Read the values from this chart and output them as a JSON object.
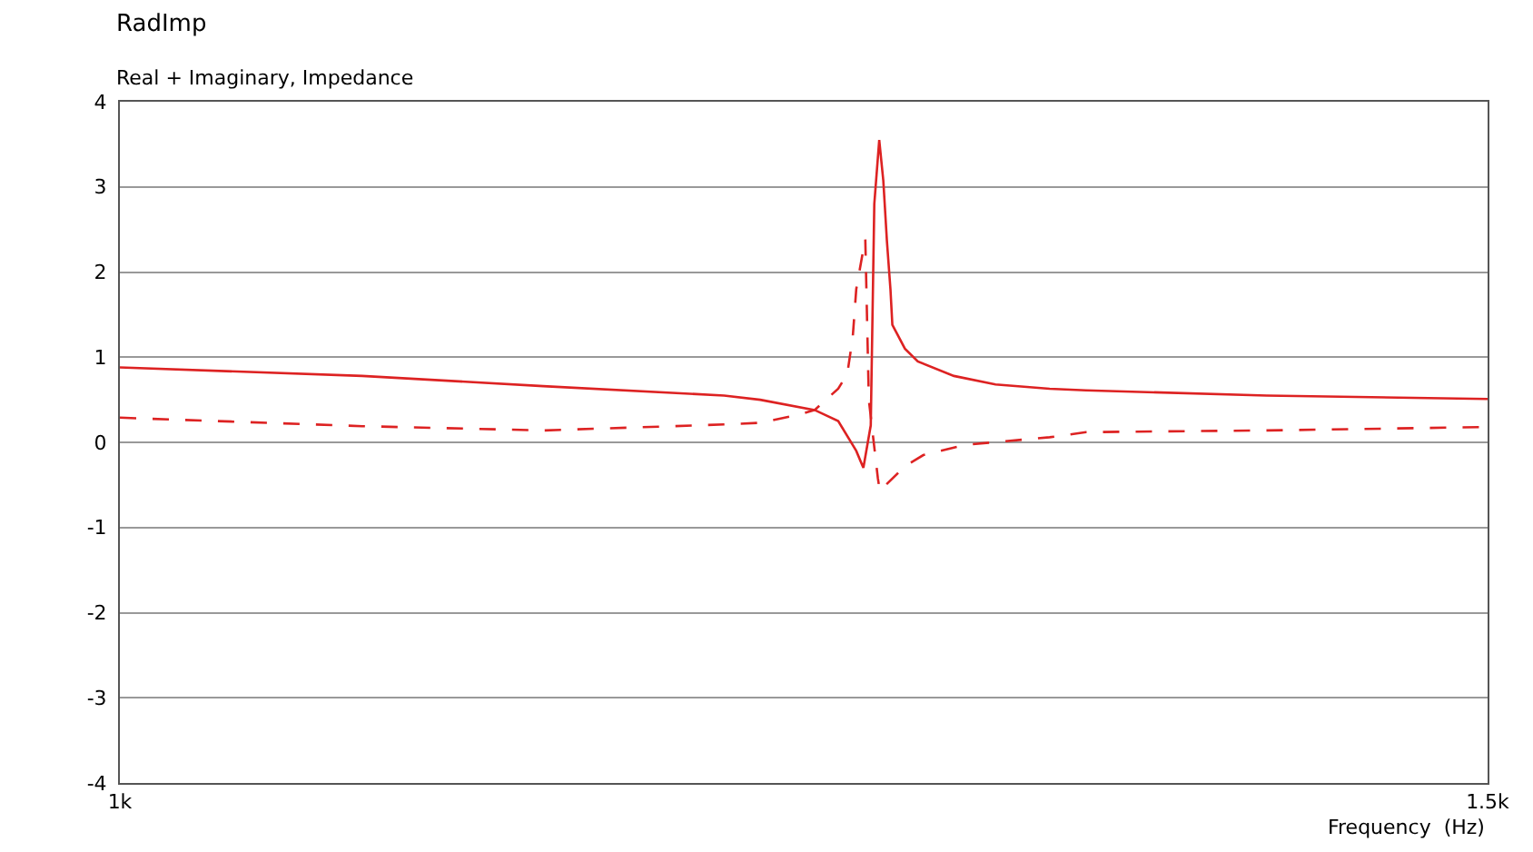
{
  "chart_data": {
    "type": "line",
    "title": "RadImp",
    "subtitle": "Real + Imaginary, Impedance",
    "xlabel": "Frequency  (Hz)",
    "x": [
      1000,
      1088.6,
      1154.8,
      1220.9,
      1234.1,
      1254,
      1262.6,
      1269.2,
      1271.8,
      1274.5,
      1275.8,
      1277.6,
      1279.1,
      1280.4,
      1281.7,
      1282.4,
      1287,
      1291.7,
      1304.9,
      1320.1,
      1339.9,
      1353.2,
      1419.3,
      1500
    ],
    "series": [
      {
        "color": "#dd2222",
        "line_style": "solid",
        "values": [
          0.88,
          0.78,
          0.66,
          0.55,
          0.5,
          0.38,
          0.25,
          -0.1,
          -0.3,
          0.2,
          2.8,
          3.55,
          3.07,
          2.37,
          1.8,
          1.38,
          1.1,
          0.95,
          0.78,
          0.68,
          0.63,
          0.61,
          0.55,
          0.51
        ]
      },
      {
        "color": "#dd2222",
        "line_style": "dashed",
        "x": [
          1000,
          1088.6,
          1154.8,
          1220.9,
          1234.1,
          1247.4,
          1254,
          1262.6,
          1265.9,
          1267.9,
          1269.2,
          1271.2,
          1272.5,
          1273.8,
          1277.1,
          1277.8,
          1287,
          1293.7,
          1308.9,
          1339.9,
          1353.2,
          1419.3,
          1500
        ],
        "values": [
          0.29,
          0.19,
          0.14,
          0.21,
          0.23,
          0.32,
          0.38,
          0.63,
          0.8,
          1.23,
          1.8,
          2.16,
          2.39,
          0.5,
          -0.42,
          -0.57,
          -0.28,
          -0.15,
          -0.03,
          0.06,
          0.12,
          0.14,
          0.18
        ]
      }
    ],
    "xlim": [
      1000,
      1500
    ],
    "xticks": [
      {
        "value": 1000,
        "label": "1k"
      },
      {
        "value": 1500,
        "label": "1.5k"
      }
    ],
    "ylim": [
      -4,
      4
    ],
    "yticks": [
      -4,
      -3,
      -2,
      -1,
      0,
      1,
      2,
      3,
      4
    ],
    "grid": "y"
  }
}
